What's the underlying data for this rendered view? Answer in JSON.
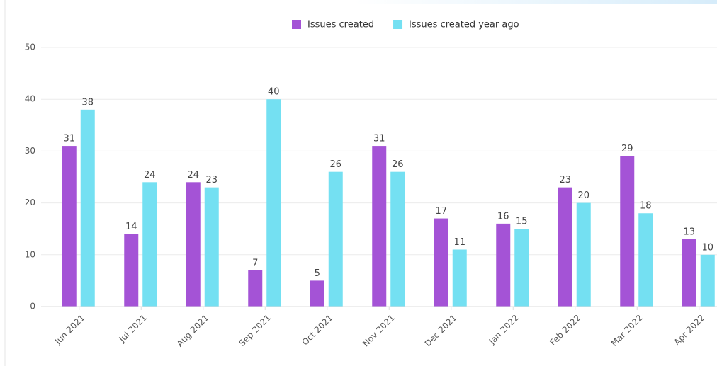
{
  "chart_data": {
    "type": "bar",
    "categories": [
      "Jun 2021",
      "Jul 2021",
      "Aug 2021",
      "Sep 2021",
      "Oct 2021",
      "Nov 2021",
      "Dec 2021",
      "Jan 2022",
      "Feb 2022",
      "Mar 2022",
      "Apr 2022"
    ],
    "series": [
      {
        "name": "Issues created",
        "color": "#a453d6",
        "values": [
          31,
          14,
          24,
          7,
          5,
          31,
          17,
          16,
          23,
          29,
          13
        ]
      },
      {
        "name": "Issues created year ago",
        "color": "#74e0f2",
        "values": [
          38,
          24,
          23,
          40,
          26,
          26,
          11,
          15,
          20,
          18,
          10
        ]
      }
    ],
    "ylim": [
      0,
      50
    ],
    "yticks": [
      0,
      10,
      20,
      30,
      40,
      50
    ],
    "grid": true,
    "legend": "top"
  }
}
